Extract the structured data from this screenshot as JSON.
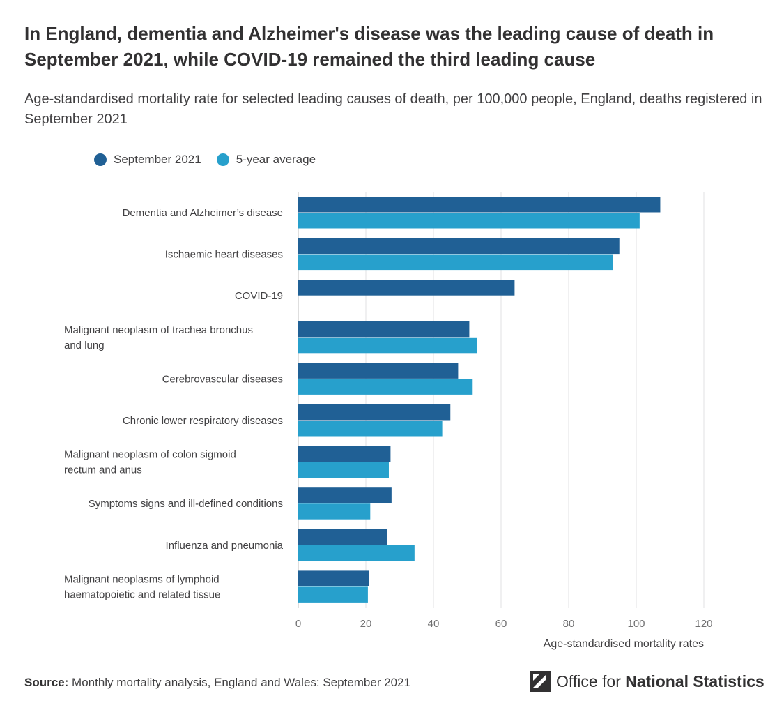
{
  "title": "In England, dementia and Alzheimer's disease was the leading cause of death in September 2021, while COVID-19 remained the third leading cause",
  "subtitle": "Age-standardised mortality rate for selected leading causes of death, per 100,000 people, England, deaths registered in September 2021",
  "legend": [
    {
      "label": "September 2021",
      "color": "#206095"
    },
    {
      "label": "5-year average",
      "color": "#27a0cc"
    }
  ],
  "chart_data": {
    "type": "bar",
    "orientation": "horizontal",
    "categories": [
      [
        "Dementia and Alzheimer’s disease"
      ],
      [
        "Ischaemic heart diseases"
      ],
      [
        "COVID-19"
      ],
      [
        "Malignant neoplasm of trachea bronchus",
        "and lung"
      ],
      [
        "Cerebrovascular diseases"
      ],
      [
        "Chronic lower respiratory diseases"
      ],
      [
        "Malignant neoplasm of colon sigmoid",
        "rectum and anus"
      ],
      [
        "Symptoms signs and ill-defined conditions"
      ],
      [
        "Influenza and pneumonia"
      ],
      [
        "Malignant neoplasms of lymphoid",
        "haematopoietic and related tissue"
      ]
    ],
    "series": [
      {
        "name": "September 2021",
        "color": "#206095",
        "values": [
          107.1,
          95.0,
          64.0,
          50.6,
          47.3,
          45.0,
          27.3,
          27.6,
          26.2,
          21.0
        ]
      },
      {
        "name": "5-year average",
        "color": "#27a0cc",
        "values": [
          101.0,
          93.0,
          null,
          52.9,
          51.6,
          42.6,
          26.8,
          21.3,
          34.4,
          20.6
        ]
      }
    ],
    "xlabel": "Age-standardised mortality rates",
    "xlim": [
      0,
      120
    ],
    "xticks": [
      0,
      20,
      40,
      60,
      80,
      100,
      120
    ],
    "grid": "vertical",
    "legend_position": "top-left"
  },
  "footer": {
    "source_label": "Source:",
    "source_text": "Monthly mortality analysis, England and Wales: September 2021",
    "logo_text_regular": "Office for",
    "logo_text_bold": "National Statistics",
    "logo_icon": "ons-logo-icon"
  }
}
